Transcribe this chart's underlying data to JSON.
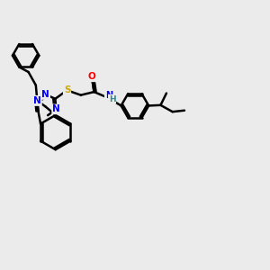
{
  "bg_color": "#ebebeb",
  "atom_colors": {
    "C": "#000000",
    "N": "#0000ee",
    "S": "#ccaa00",
    "O": "#ff0000",
    "H": "#2e8b8b"
  },
  "bond_color": "#000000",
  "bond_width": 1.8,
  "figsize": [
    3.0,
    3.0
  ],
  "dpi": 100,
  "xlim": [
    0,
    10
  ],
  "ylim": [
    0,
    10
  ]
}
